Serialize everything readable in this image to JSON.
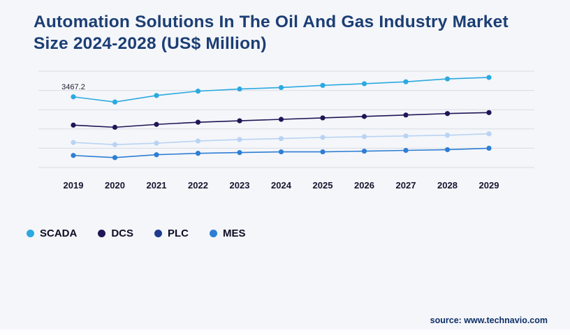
{
  "page": {
    "title": "Automation Solutions In The Oil And Gas Industry Market Size 2024-2028 (US$ Million)",
    "source_label": "source:",
    "source_value": "www.technavio.com"
  },
  "chart_data": {
    "type": "line",
    "title": "Automation Solutions In The Oil And Gas Industry Market Size 2024-2028 (US$ Million)",
    "xlabel": "",
    "ylabel": "US$ Million",
    "categories": [
      "2019",
      "2020",
      "2021",
      "2022",
      "2023",
      "2024",
      "2025",
      "2026",
      "2027",
      "2028",
      "2029"
    ],
    "series": [
      {
        "name": "SCADA",
        "color": "#2ba9e0",
        "values": [
          3467.2,
          3360,
          3495,
          3585,
          3630,
          3660,
          3705,
          3740,
          3780,
          3840,
          3870
        ]
      },
      {
        "name": "DCS",
        "color": "#1e1656",
        "values": [
          2880,
          2835,
          2895,
          2940,
          2970,
          3000,
          3030,
          3060,
          3090,
          3120,
          3140
        ]
      },
      {
        "name": "PLC",
        "color": "#b9d3f2",
        "legend_color": "#1e3b8e",
        "values": [
          2520,
          2475,
          2505,
          2550,
          2580,
          2600,
          2625,
          2640,
          2655,
          2670,
          2700
        ]
      },
      {
        "name": "MES",
        "color": "#2e7ed3",
        "values": [
          2250,
          2205,
          2265,
          2295,
          2310,
          2325,
          2325,
          2340,
          2355,
          2370,
          2400
        ]
      }
    ],
    "annotation": {
      "text": "3467.2",
      "series_index": 0,
      "point_index": 0
    },
    "ylim": [
      2000,
      4000
    ],
    "grid": true,
    "gridline_count": 6,
    "legend_position": "bottom-left",
    "grid_color": "#d8dce2",
    "tick_color": "#15152e"
  }
}
